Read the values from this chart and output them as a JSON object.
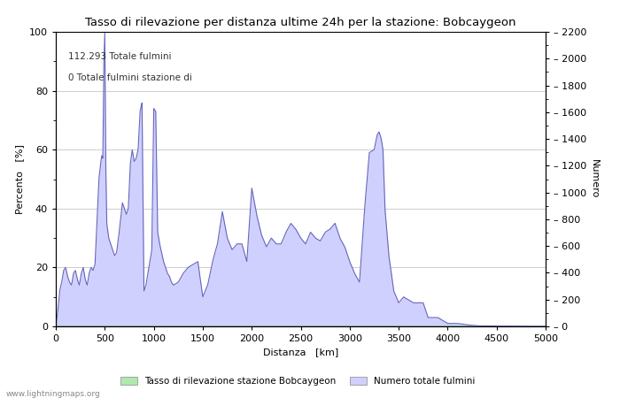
{
  "title": "Tasso di rilevazione per distanza ultime 24h per la stazione: Bobcaygeon",
  "xlabel": "Distanza   [km]",
  "ylabel_left": "Percento   [%]",
  "ylabel_right": "Numero",
  "annotation_line1": "112.293 Totale fulmini",
  "annotation_line2": "0 Totale fulmini stazione di",
  "xlim": [
    0,
    5000
  ],
  "ylim_left": [
    0,
    100
  ],
  "ylim_right": [
    0,
    2200
  ],
  "right_yticks": [
    0,
    200,
    400,
    600,
    800,
    1000,
    1200,
    1400,
    1600,
    1800,
    2000,
    2200
  ],
  "left_yticks": [
    0,
    20,
    40,
    60,
    80,
    100
  ],
  "xticks": [
    0,
    500,
    1000,
    1500,
    2000,
    2500,
    3000,
    3500,
    4000,
    4500,
    5000
  ],
  "fill_color_blue": "#d0d0ff",
  "fill_color_green": "#b0e8b0",
  "line_color_blue": "#6666bb",
  "line_color_green": "#55aa55",
  "legend_label_green": "Tasso di rilevazione stazione Bobcaygeon",
  "legend_label_blue": "Numero totale fulmini",
  "watermark": "www.lightningmaps.org",
  "bg_color": "#ffffff",
  "grid_color": "#bbbbbb",
  "x_keypoints": [
    0,
    20,
    40,
    60,
    80,
    100,
    120,
    140,
    160,
    180,
    200,
    220,
    240,
    260,
    280,
    300,
    320,
    340,
    360,
    380,
    400,
    420,
    440,
    460,
    470,
    480,
    490,
    500,
    510,
    520,
    540,
    560,
    580,
    600,
    620,
    640,
    660,
    680,
    700,
    720,
    740,
    760,
    780,
    800,
    820,
    840,
    860,
    880,
    900,
    920,
    940,
    960,
    980,
    1000,
    1020,
    1040,
    1060,
    1080,
    1100,
    1120,
    1140,
    1160,
    1180,
    1200,
    1250,
    1300,
    1350,
    1400,
    1450,
    1500,
    1550,
    1600,
    1650,
    1700,
    1750,
    1800,
    1850,
    1900,
    1950,
    2000,
    2050,
    2100,
    2150,
    2200,
    2250,
    2300,
    2350,
    2400,
    2450,
    2500,
    2550,
    2600,
    2650,
    2700,
    2750,
    2800,
    2850,
    2900,
    2950,
    3000,
    3050,
    3100,
    3150,
    3200,
    3250,
    3280,
    3300,
    3320,
    3340,
    3360,
    3400,
    3450,
    3500,
    3550,
    3600,
    3650,
    3700,
    3750,
    3800,
    3850,
    3900,
    3950,
    4000,
    4100,
    4200,
    4300,
    4500,
    5000
  ],
  "y_keypoints": [
    0,
    5,
    12,
    15,
    19,
    20,
    17,
    15,
    14,
    18,
    19,
    16,
    14,
    18,
    20,
    16,
    14,
    18,
    20,
    19,
    21,
    35,
    50,
    56,
    58,
    57,
    89,
    100,
    55,
    35,
    30,
    28,
    26,
    24,
    25,
    30,
    36,
    42,
    40,
    38,
    40,
    55,
    60,
    56,
    57,
    60,
    73,
    76,
    12,
    14,
    18,
    22,
    26,
    74,
    73,
    32,
    28,
    25,
    22,
    20,
    18,
    17,
    15,
    14,
    15,
    18,
    20,
    21,
    22,
    10,
    14,
    22,
    28,
    39,
    30,
    26,
    28,
    28,
    22,
    47,
    38,
    31,
    27,
    30,
    28,
    28,
    32,
    35,
    33,
    30,
    28,
    32,
    30,
    29,
    32,
    33,
    35,
    30,
    27,
    22,
    18,
    15,
    39,
    59,
    60,
    65,
    66,
    64,
    60,
    40,
    24,
    12,
    8,
    10,
    9,
    8,
    8,
    8,
    3,
    3,
    3,
    2,
    1,
    1,
    0.5,
    0.2,
    0.1,
    0
  ]
}
